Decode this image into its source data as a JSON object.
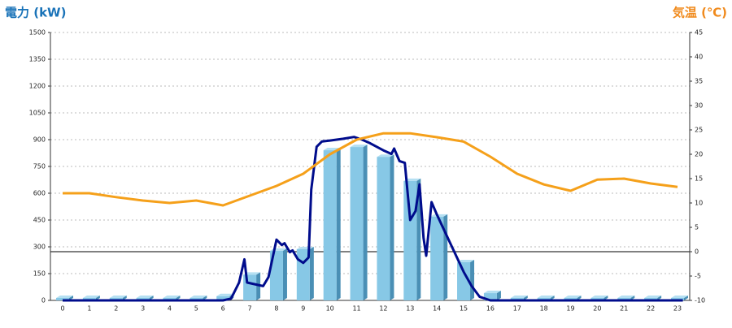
{
  "chart_data": {
    "type": "combo",
    "title": "電力 (kW)",
    "y2_title": "気温 (℃)",
    "categories": [
      "0",
      "1",
      "2",
      "3",
      "4",
      "5",
      "6",
      "7",
      "8",
      "9",
      "10",
      "11",
      "12",
      "13",
      "14",
      "15",
      "16",
      "17",
      "18",
      "19",
      "20",
      "21",
      "22",
      "23"
    ],
    "ylim": [
      0,
      1500
    ],
    "yticks": [
      0,
      150,
      300,
      450,
      600,
      750,
      900,
      1050,
      1200,
      1350,
      1500
    ],
    "y2lim": [
      -10,
      45
    ],
    "y2ticks": [
      -10,
      -5,
      0,
      5,
      10,
      15,
      20,
      25,
      30,
      35,
      40,
      45
    ],
    "grid": true,
    "series": [
      {
        "type": "bar",
        "color": "#87c8e6",
        "values": [
          0,
          0,
          0,
          0,
          0,
          0,
          10,
          130,
          264,
          273,
          827,
          845,
          790,
          655,
          455,
          200,
          27,
          0,
          0,
          0,
          0,
          0,
          0,
          0
        ]
      },
      {
        "type": "line",
        "color": "#000c8c",
        "x": [
          0,
          6,
          6.3,
          6.6,
          6.8,
          6.9,
          7.5,
          7.7,
          8.0,
          8.2,
          8.3,
          8.5,
          8.6,
          8.8,
          9.0,
          9.2,
          9.3,
          9.5,
          9.7,
          10,
          10.5,
          10.9,
          11.2,
          11.5,
          12.0,
          12.3,
          12.4,
          12.6,
          12.8,
          13.0,
          13.2,
          13.35,
          13.5,
          13.6,
          13.8,
          14.0,
          14.5,
          15.0,
          15.3,
          15.6,
          16,
          23.2
        ],
        "values": [
          0,
          0,
          10,
          100,
          230,
          100,
          80,
          130,
          340,
          310,
          320,
          270,
          280,
          230,
          210,
          240,
          620,
          860,
          890,
          895,
          905,
          915,
          900,
          880,
          840,
          820,
          850,
          780,
          770,
          450,
          500,
          650,
          350,
          250,
          550,
          480,
          320,
          160,
          80,
          20,
          0,
          0
        ]
      },
      {
        "type": "line",
        "axis": "y2",
        "color": "#f5a01a",
        "values": [
          12,
          12,
          11.2,
          10.5,
          10,
          10.5,
          9.5,
          11.5,
          13.5,
          16,
          20,
          23,
          24.3,
          24.3,
          23.5,
          22.6,
          19.5,
          16,
          13.8,
          12.5,
          14.8,
          15,
          14,
          13.3
        ]
      }
    ]
  }
}
